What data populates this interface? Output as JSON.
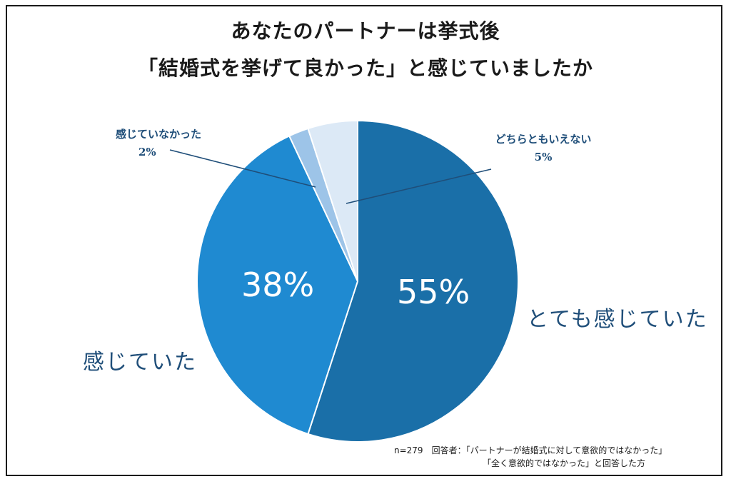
{
  "chart_data": {
    "type": "pie",
    "title_line1": "あなたのパートナーは挙式後",
    "title_line2": "「結婚式を挙げて良かった」と感じていましたか",
    "slices": [
      {
        "label": "とても感じていた",
        "value": 55,
        "pct_text": "55%",
        "color": "#1a6fa8"
      },
      {
        "label": "感じていた",
        "value": 38,
        "pct_text": "38%",
        "color": "#1f8ad1"
      },
      {
        "label": "感じていなかった",
        "value": 2,
        "pct_text": "2%",
        "color": "#9dc4e8"
      },
      {
        "label": "どちらともいえない",
        "value": 5,
        "pct_text": "5%",
        "color": "#dce9f6"
      }
    ]
  },
  "note": {
    "line1": "n=279　回答者：「パートナーが結婚式に対して意欲的ではなかった」",
    "line2": "「全く意欲的ではなかった」と回答した方"
  }
}
